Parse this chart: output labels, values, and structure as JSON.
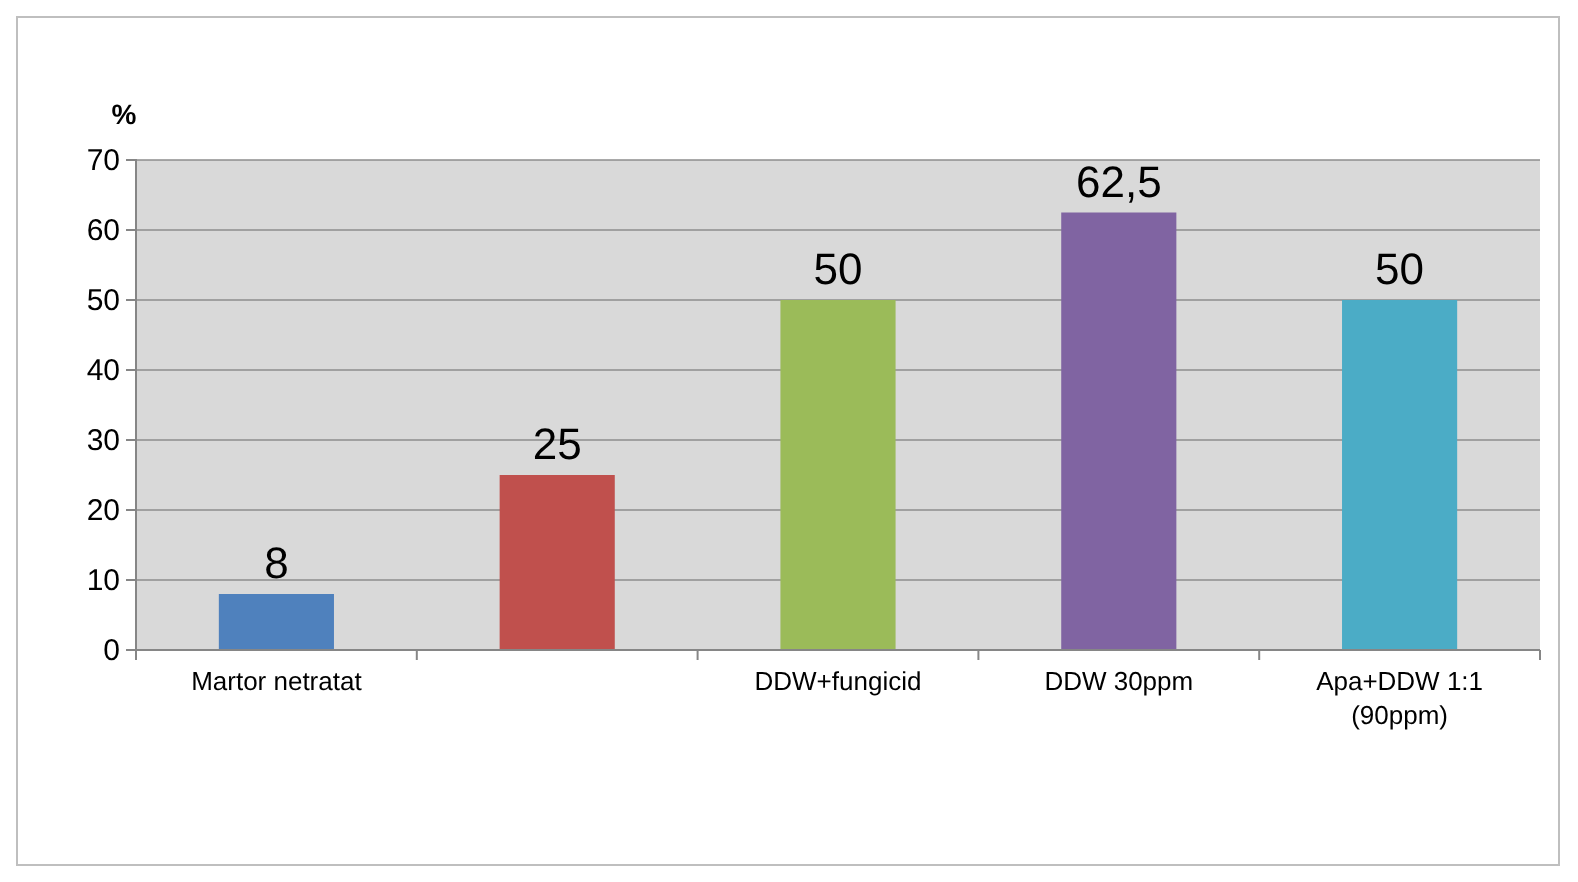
{
  "chart_data": {
    "type": "bar",
    "ylabel": "%",
    "categories": [
      "Martor netratat",
      null,
      "DDW+fungicid",
      "DDW 30ppm",
      "Apa+DDW 1:1 (90ppm)"
    ],
    "values": [
      8,
      25,
      50,
      62.5,
      50
    ],
    "colors": [
      "#4f81bd",
      "#c0504d",
      "#9bbb59",
      "#8064a2",
      "#4bacc6"
    ],
    "value_labels": [
      "8",
      "25",
      "50",
      "62,5",
      "50"
    ],
    "ylim": [
      0,
      70
    ],
    "yticks": [
      0,
      10,
      20,
      30,
      40,
      50,
      60,
      70
    ],
    "grid": "y"
  }
}
